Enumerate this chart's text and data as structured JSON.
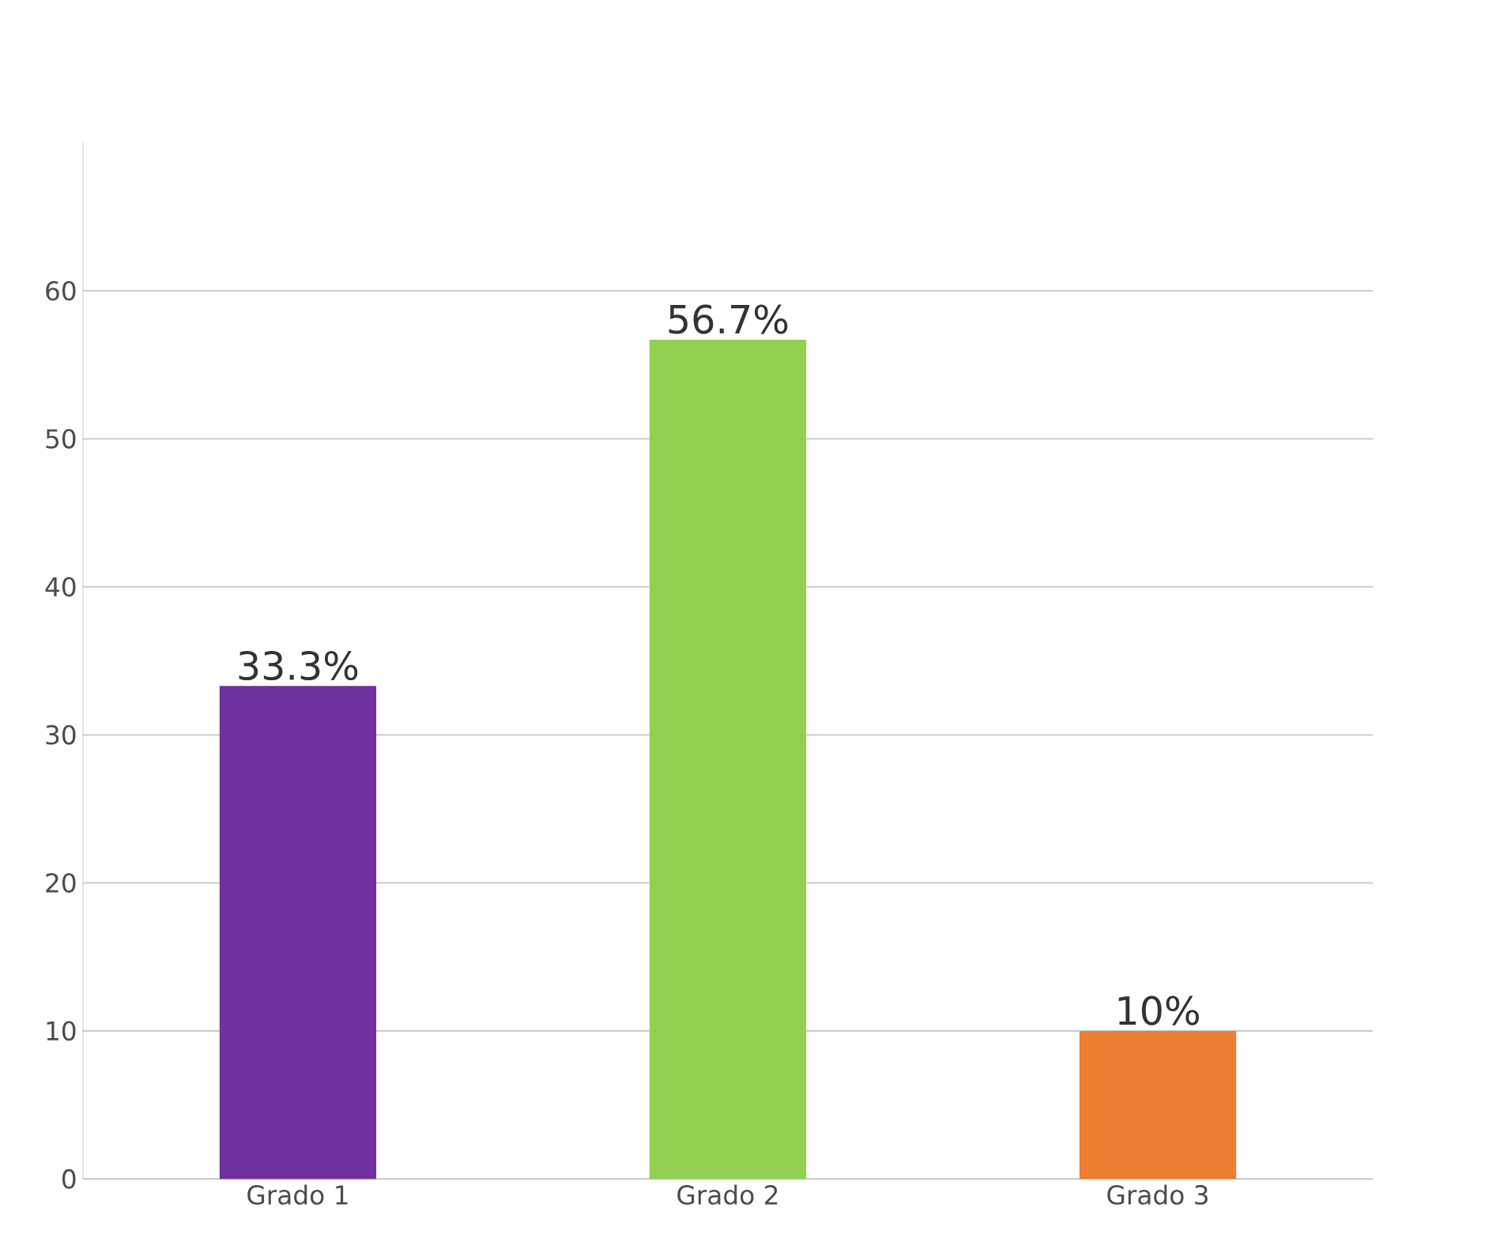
{
  "chart_data": {
    "type": "bar",
    "categories": [
      "Grado 1",
      "Grado 2",
      "Grado 3"
    ],
    "values": [
      33.3,
      56.7,
      10
    ],
    "colors": [
      "#7030a0",
      "#92d050",
      "#ed7d31"
    ],
    "value_labels": [
      "33.3%",
      "56.7%",
      "10%"
    ],
    "ylim": [
      0,
      70
    ],
    "yticks": [
      0,
      10,
      20,
      30,
      40,
      50,
      60
    ],
    "grid": "y"
  }
}
